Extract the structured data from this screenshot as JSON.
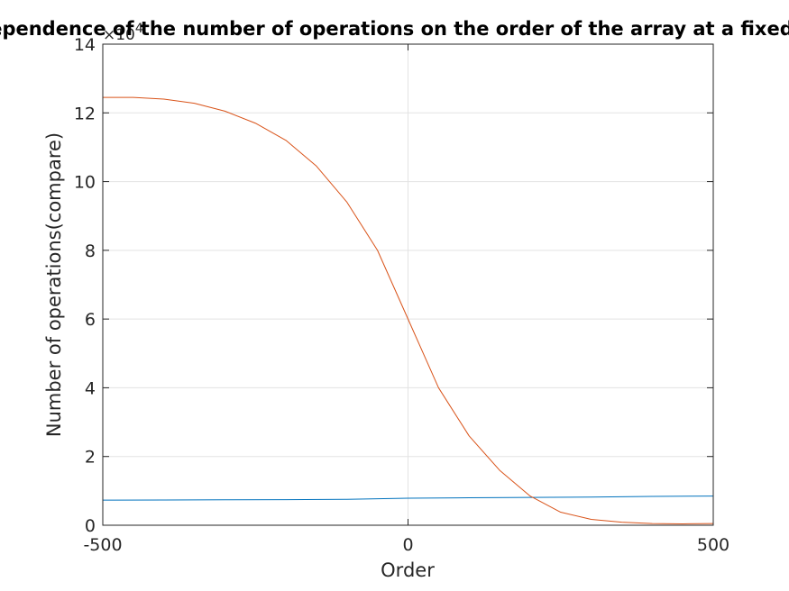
{
  "chart_data": {
    "type": "line",
    "title": "Dependence of the number of operations on the order of the array at a fixed size",
    "xlabel": "Order",
    "ylabel": "Number of operations(compare)",
    "xlim": [
      -500,
      500
    ],
    "ylim": [
      0,
      140000
    ],
    "x_ticks": [
      -500,
      0,
      500
    ],
    "x_tick_labels": [
      "-500",
      "0",
      "500"
    ],
    "y_ticks": [
      0,
      20000,
      40000,
      60000,
      80000,
      100000,
      120000,
      140000
    ],
    "y_tick_labels": [
      "0",
      "2",
      "4",
      "6",
      "8",
      "10",
      "12",
      "14"
    ],
    "y_exponent_base": "×10",
    "y_exponent_power": "4",
    "grid": true,
    "series": [
      {
        "color": "#0072BD",
        "x": [
          -500,
          -400,
          -300,
          -200,
          -100,
          0,
          100,
          200,
          300,
          400,
          500
        ],
        "y": [
          7300,
          7350,
          7400,
          7450,
          7550,
          7850,
          8000,
          8100,
          8200,
          8400,
          8500
        ]
      },
      {
        "color": "#D95319",
        "x": [
          -500,
          -450,
          -400,
          -350,
          -300,
          -250,
          -200,
          -150,
          -100,
          -50,
          0,
          50,
          100,
          150,
          200,
          250,
          300,
          350,
          400,
          450,
          500
        ],
        "y": [
          124500,
          124500,
          124000,
          122800,
          120500,
          117000,
          112000,
          104500,
          94000,
          80000,
          60000,
          40000,
          26000,
          16000,
          8500,
          3800,
          1700,
          900,
          500,
          400,
          500
        ]
      }
    ]
  }
}
